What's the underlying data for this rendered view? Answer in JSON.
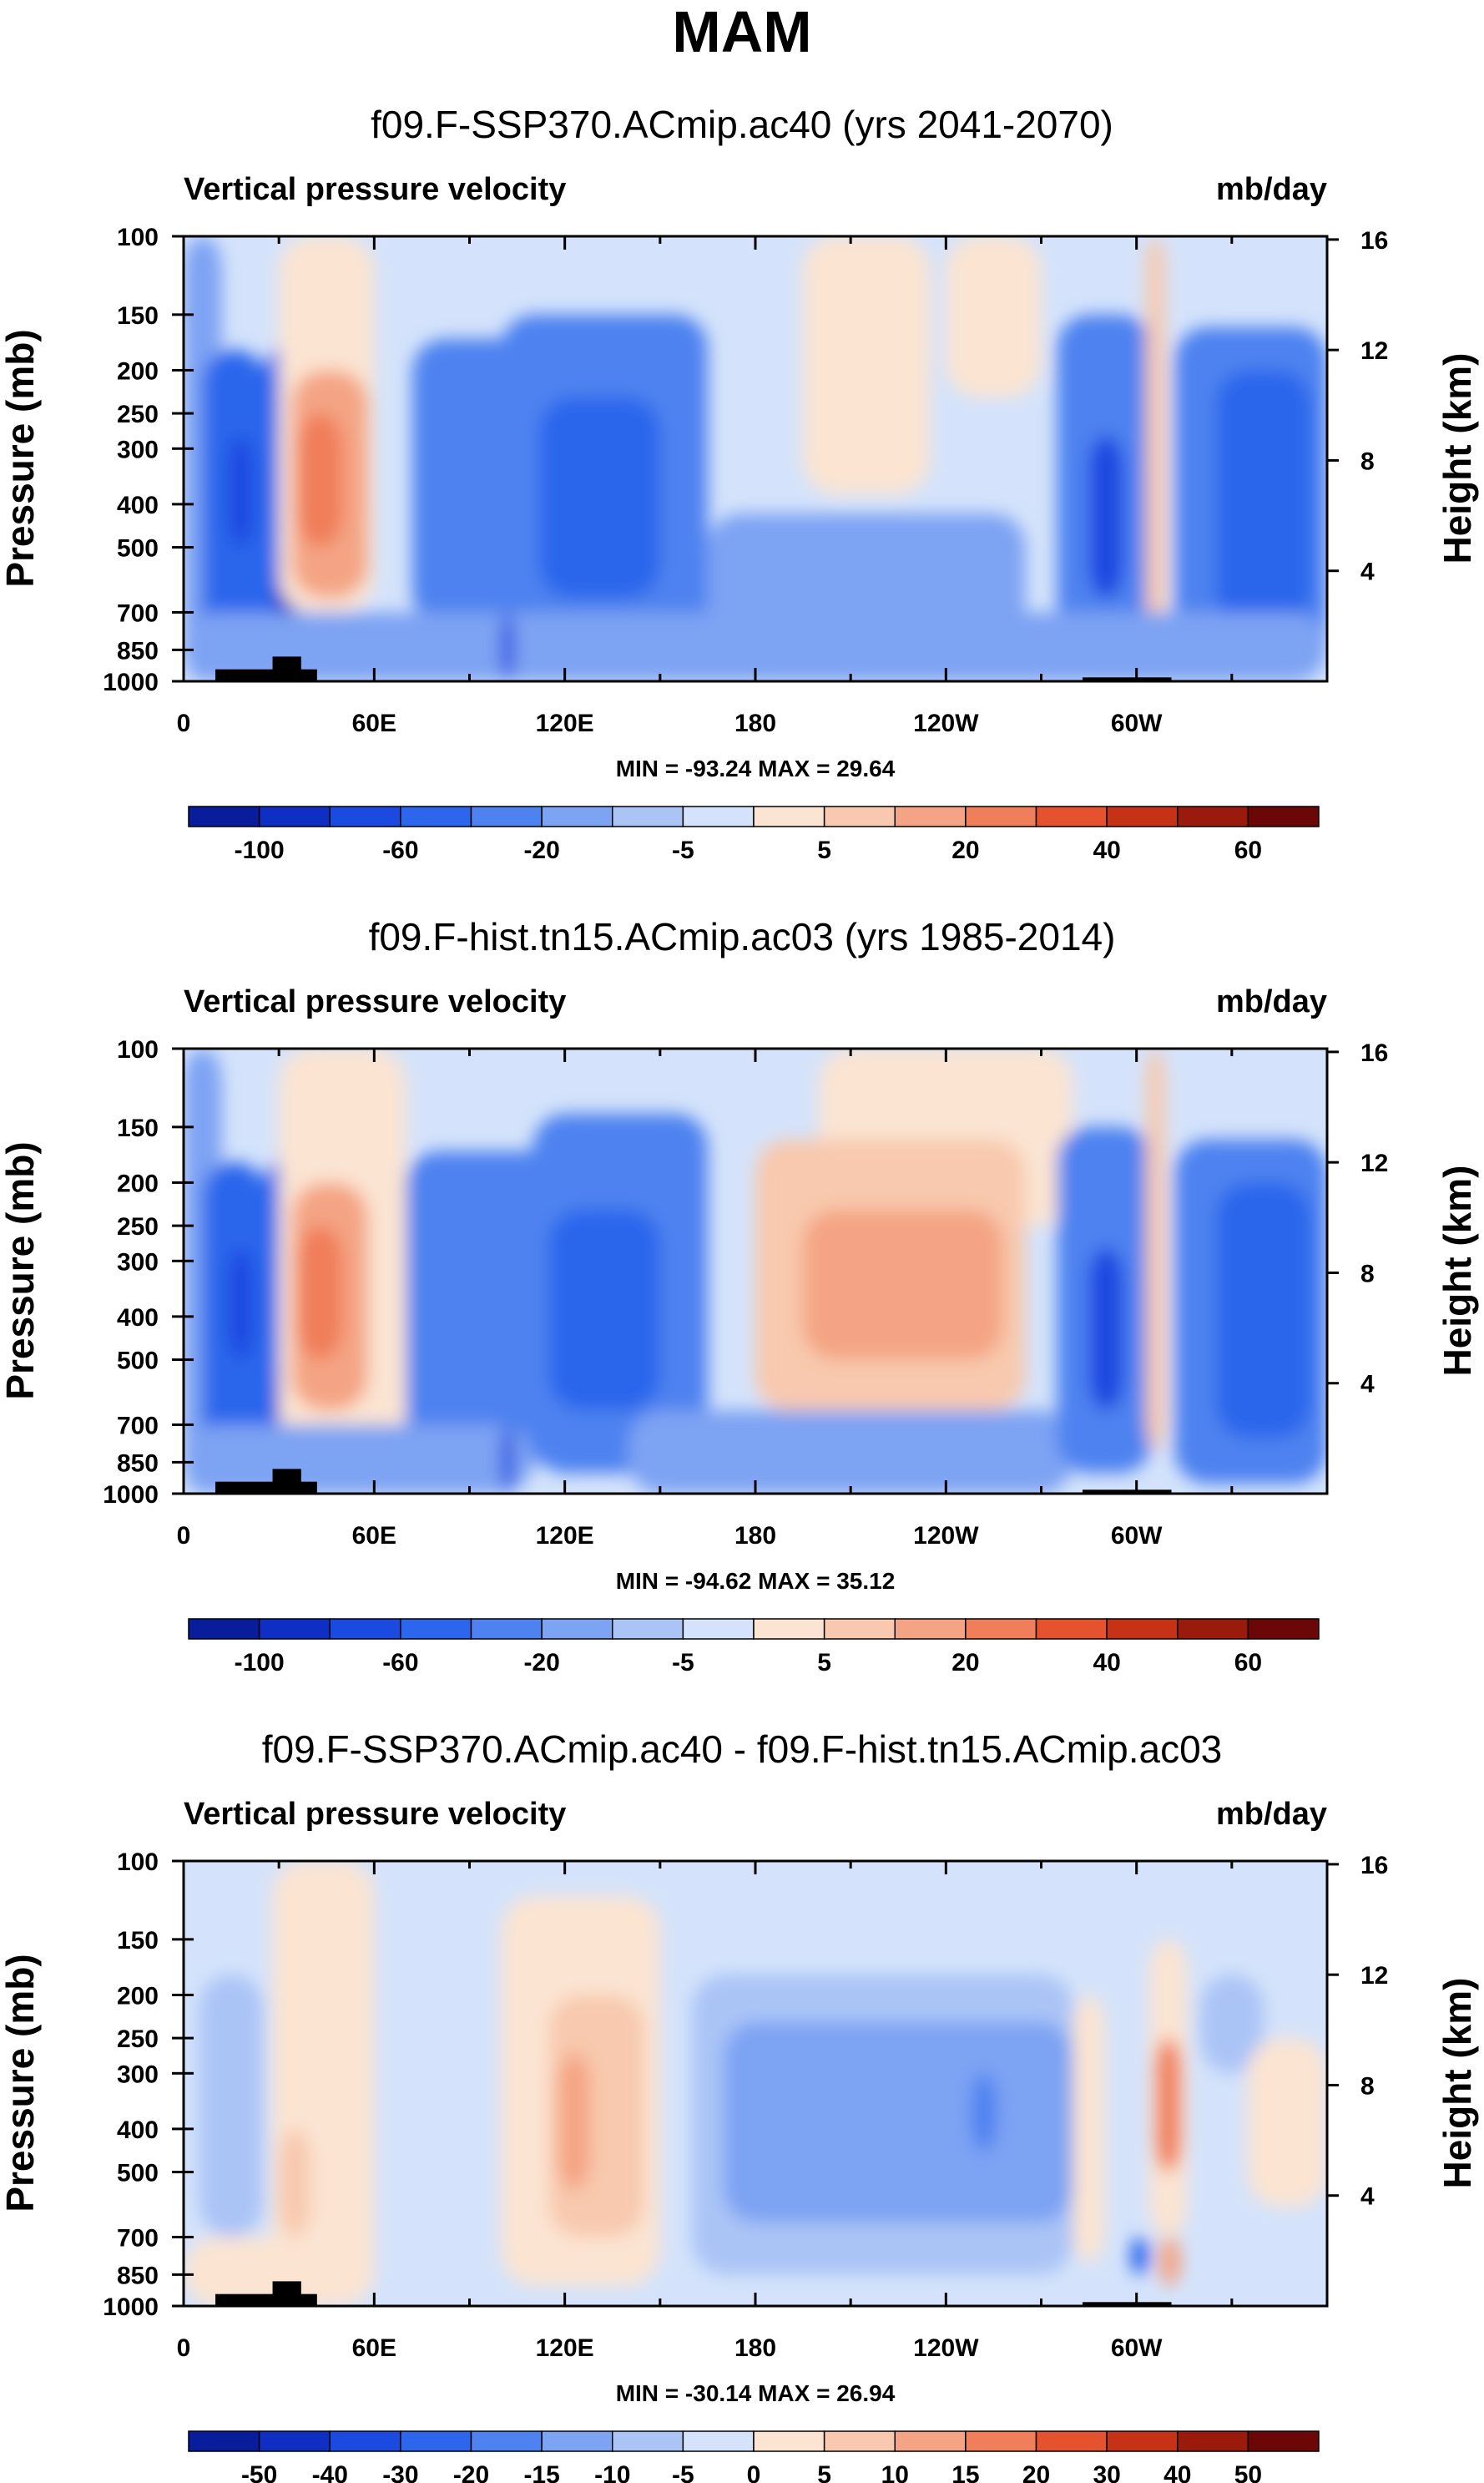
{
  "main_title": "MAM",
  "chart_data": [
    {
      "type": "heatmap",
      "title": "f09.F-SSP370.ACmip.ac40 (yrs 2041-2070)",
      "variable": "Vertical pressure velocity",
      "units": "mb/day",
      "ylabel": "Pressure (mb)",
      "ylabel_right": "Height (km)",
      "pressure_ticks": [
        100,
        150,
        200,
        250,
        300,
        400,
        500,
        700,
        850,
        1000
      ],
      "height_ticks": [
        16,
        12,
        8,
        4
      ],
      "x_ticks": [
        "0",
        "60E",
        "120E",
        "180",
        "120W",
        "60W"
      ],
      "x_tick_lon": [
        0,
        60,
        120,
        180,
        240,
        300
      ],
      "stats": "MIN = -93.24  MAX = 29.64",
      "colorbar_labels": [
        "-100",
        "-60",
        "-20",
        "-5",
        "5",
        "20",
        "40",
        "60"
      ],
      "regions": [
        {
          "lon": [
            0,
            12
          ],
          "levels": [
            100,
            1000
          ],
          "value": -10
        },
        {
          "lon": [
            6,
            26
          ],
          "levels": [
            180,
            900
          ],
          "value": -50
        },
        {
          "lon": [
            14,
            22
          ],
          "levels": [
            280,
            500
          ],
          "value": -75
        },
        {
          "lon": [
            25,
            34
          ],
          "levels": [
            180,
            1000
          ],
          "value": -40
        },
        {
          "lon": [
            29,
            36
          ],
          "levels": [
            500,
            1000
          ],
          "value": -80
        },
        {
          "lon": [
            30,
            60
          ],
          "levels": [
            100,
            700
          ],
          "value": 3
        },
        {
          "lon": [
            34,
            58
          ],
          "levels": [
            200,
            650
          ],
          "value": 12
        },
        {
          "lon": [
            36,
            50
          ],
          "levels": [
            250,
            500
          ],
          "value": 22
        },
        {
          "lon": [
            72,
            140
          ],
          "levels": [
            170,
            750
          ],
          "value": -20
        },
        {
          "lon": [
            100,
            165
          ],
          "levels": [
            150,
            900
          ],
          "value": -25
        },
        {
          "lon": [
            112,
            150
          ],
          "levels": [
            230,
            650
          ],
          "value": -50
        },
        {
          "lon": [
            165,
            265
          ],
          "levels": [
            420,
            850
          ],
          "value": -10
        },
        {
          "lon": [
            195,
            235
          ],
          "levels": [
            100,
            380
          ],
          "value": 3
        },
        {
          "lon": [
            240,
            270
          ],
          "levels": [
            100,
            230
          ],
          "value": 3
        },
        {
          "lon": [
            275,
            305
          ],
          "levels": [
            150,
            900
          ],
          "value": -30
        },
        {
          "lon": [
            285,
            296
          ],
          "levels": [
            280,
            650
          ],
          "value": -75
        },
        {
          "lon": [
            303,
            309
          ],
          "levels": [
            100,
            800
          ],
          "value": 5
        },
        {
          "lon": [
            312,
            360
          ],
          "levels": [
            160,
            950
          ],
          "value": -25
        },
        {
          "lon": [
            325,
            355
          ],
          "levels": [
            200,
            750
          ],
          "value": -45
        },
        {
          "lon": [
            0,
            360
          ],
          "levels": [
            700,
            1000
          ],
          "value": -12
        },
        {
          "lon": [
            100,
            104
          ],
          "levels": [
            700,
            1000
          ],
          "value": -60
        }
      ],
      "topography": [
        {
          "lon": [
            10,
            42
          ],
          "top": 940
        },
        {
          "lon": [
            28,
            37
          ],
          "top": 880
        },
        {
          "lon": [
            283,
            311
          ],
          "top": 980
        }
      ]
    },
    {
      "type": "heatmap",
      "title": "f09.F-hist.tn15.ACmip.ac03 (yrs 1985-2014)",
      "variable": "Vertical pressure velocity",
      "units": "mb/day",
      "ylabel": "Pressure (mb)",
      "ylabel_right": "Height (km)",
      "pressure_ticks": [
        100,
        150,
        200,
        250,
        300,
        400,
        500,
        700,
        850,
        1000
      ],
      "height_ticks": [
        16,
        12,
        8,
        4
      ],
      "x_ticks": [
        "0",
        "60E",
        "120E",
        "180",
        "120W",
        "60W"
      ],
      "x_tick_lon": [
        0,
        60,
        120,
        180,
        240,
        300
      ],
      "stats": "MIN = -94.62  MAX = 35.12",
      "colorbar_labels": [
        "-100",
        "-60",
        "-20",
        "-5",
        "5",
        "20",
        "40",
        "60"
      ],
      "regions": [
        {
          "lon": [
            0,
            12
          ],
          "levels": [
            100,
            1000
          ],
          "value": -10
        },
        {
          "lon": [
            6,
            26
          ],
          "levels": [
            180,
            900
          ],
          "value": -50
        },
        {
          "lon": [
            14,
            22
          ],
          "levels": [
            280,
            500
          ],
          "value": -75
        },
        {
          "lon": [
            25,
            34
          ],
          "levels": [
            180,
            1000
          ],
          "value": -40
        },
        {
          "lon": [
            29,
            36
          ],
          "levels": [
            500,
            1000
          ],
          "value": -80
        },
        {
          "lon": [
            30,
            70
          ],
          "levels": [
            100,
            800
          ],
          "value": 3
        },
        {
          "lon": [
            34,
            58
          ],
          "levels": [
            200,
            650
          ],
          "value": 12
        },
        {
          "lon": [
            36,
            50
          ],
          "levels": [
            250,
            500
          ],
          "value": 22
        },
        {
          "lon": [
            70,
            150
          ],
          "levels": [
            170,
            850
          ],
          "value": -20
        },
        {
          "lon": [
            110,
            165
          ],
          "levels": [
            140,
            900
          ],
          "value": -25
        },
        {
          "lon": [
            115,
            150
          ],
          "levels": [
            230,
            650
          ],
          "value": -55
        },
        {
          "lon": [
            200,
            280
          ],
          "levels": [
            100,
            250
          ],
          "value": 3
        },
        {
          "lon": [
            180,
            265
          ],
          "levels": [
            160,
            650
          ],
          "value": 8
        },
        {
          "lon": [
            195,
            258
          ],
          "levels": [
            230,
            500
          ],
          "value": 18
        },
        {
          "lon": [
            140,
            280
          ],
          "levels": [
            650,
            1000
          ],
          "value": -10
        },
        {
          "lon": [
            275,
            305
          ],
          "levels": [
            150,
            900
          ],
          "value": -30
        },
        {
          "lon": [
            285,
            296
          ],
          "levels": [
            280,
            650
          ],
          "value": -75
        },
        {
          "lon": [
            303,
            309
          ],
          "levels": [
            100,
            800
          ],
          "value": 5
        },
        {
          "lon": [
            312,
            360
          ],
          "levels": [
            160,
            950
          ],
          "value": -25
        },
        {
          "lon": [
            325,
            355
          ],
          "levels": [
            200,
            750
          ],
          "value": -45
        },
        {
          "lon": [
            0,
            110
          ],
          "levels": [
            700,
            1000
          ],
          "value": -12
        },
        {
          "lon": [
            100,
            104
          ],
          "levels": [
            700,
            1000
          ],
          "value": -60
        }
      ],
      "topography": [
        {
          "lon": [
            10,
            42
          ],
          "top": 940
        },
        {
          "lon": [
            28,
            37
          ],
          "top": 880
        },
        {
          "lon": [
            283,
            311
          ],
          "top": 980
        }
      ]
    },
    {
      "type": "heatmap",
      "title": "f09.F-SSP370.ACmip.ac40 - f09.F-hist.tn15.ACmip.ac03",
      "variable": "Vertical pressure velocity",
      "units": "mb/day",
      "ylabel": "Pressure (mb)",
      "ylabel_right": "Height (km)",
      "pressure_ticks": [
        100,
        150,
        200,
        250,
        300,
        400,
        500,
        700,
        850,
        1000
      ],
      "height_ticks": [
        16,
        12,
        8,
        4
      ],
      "x_ticks": [
        "0",
        "60E",
        "120E",
        "180",
        "120W",
        "60W"
      ],
      "x_tick_lon": [
        0,
        60,
        120,
        180,
        240,
        300
      ],
      "stats": "MIN = -30.14  MAX = 26.94",
      "colorbar_labels": [
        "-50",
        "-40",
        "-30",
        "-20",
        "-15",
        "-10",
        "-5",
        "0",
        "5",
        "10",
        "15",
        "20",
        "30",
        "40",
        "50"
      ],
      "regions": [
        {
          "lon": [
            5,
            25
          ],
          "levels": [
            180,
            700
          ],
          "value": -7
        },
        {
          "lon": [
            28,
            60
          ],
          "levels": [
            100,
            1000
          ],
          "value": 2
        },
        {
          "lon": [
            30,
            40
          ],
          "levels": [
            400,
            700
          ],
          "value": 6
        },
        {
          "lon": [
            100,
            150
          ],
          "levels": [
            120,
            900
          ],
          "value": 4
        },
        {
          "lon": [
            115,
            145
          ],
          "levels": [
            200,
            700
          ],
          "value": 8
        },
        {
          "lon": [
            118,
            128
          ],
          "levels": [
            270,
            550
          ],
          "value": 12
        },
        {
          "lon": [
            160,
            280
          ],
          "levels": [
            180,
            850
          ],
          "value": -6
        },
        {
          "lon": [
            170,
            280
          ],
          "levels": [
            230,
            650
          ],
          "value": -12
        },
        {
          "lon": [
            248,
            256
          ],
          "levels": [
            300,
            450
          ],
          "value": -17
        },
        {
          "lon": [
            280,
            290
          ],
          "levels": [
            200,
            800
          ],
          "value": 3
        },
        {
          "lon": [
            304,
            316
          ],
          "levels": [
            150,
            700
          ],
          "value": 4
        },
        {
          "lon": [
            306,
            314
          ],
          "levels": [
            250,
            500
          ],
          "value": 15
        },
        {
          "lon": [
            298,
            304
          ],
          "levels": [
            700,
            850
          ],
          "value": -25
        },
        {
          "lon": [
            307,
            314
          ],
          "levels": [
            700,
            900
          ],
          "value": 12
        },
        {
          "lon": [
            320,
            340
          ],
          "levels": [
            180,
            300
          ],
          "value": -7
        },
        {
          "lon": [
            335,
            360
          ],
          "levels": [
            250,
            600
          ],
          "value": 3
        },
        {
          "lon": [
            0,
            60
          ],
          "levels": [
            700,
            1000
          ],
          "value": 3
        }
      ],
      "topography": [
        {
          "lon": [
            10,
            42
          ],
          "top": 940
        },
        {
          "lon": [
            28,
            37
          ],
          "top": 880
        },
        {
          "lon": [
            283,
            311
          ],
          "top": 980
        }
      ]
    }
  ],
  "colors": {
    "diverging": [
      "#081d9c",
      "#0f2fc4",
      "#1a4ae0",
      "#2c66ec",
      "#4d82f0",
      "#7da3f3",
      "#aac4f6",
      "#d4e3fb",
      "#fbe4d2",
      "#f8c9ae",
      "#f4a484",
      "#f07e5a",
      "#e4522e",
      "#c53216",
      "#9a1a0b",
      "#6b0707"
    ],
    "topography": "#000000",
    "axes": "#000000"
  }
}
